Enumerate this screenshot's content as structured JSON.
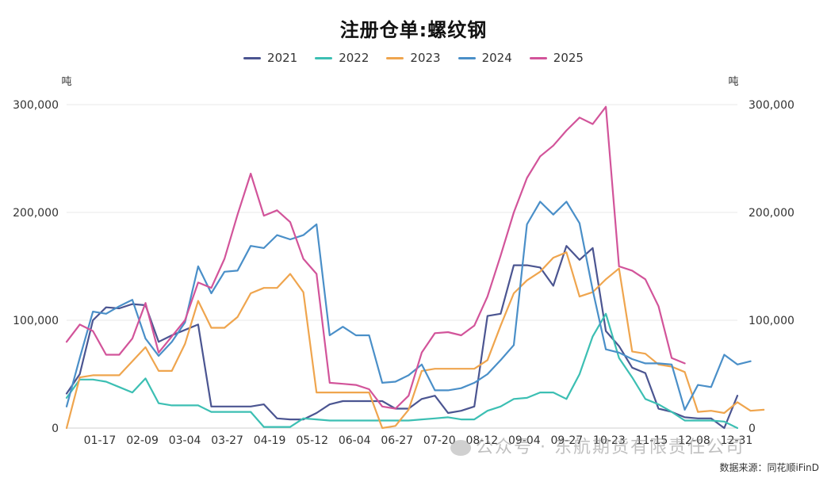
{
  "chart_data": {
    "type": "line",
    "title": "注册仓单:螺纹钢",
    "y_unit_left": "吨",
    "y_unit_right": "吨",
    "ylim": [
      0,
      300000
    ],
    "y_ticks": [
      "0",
      "100,000",
      "200,000",
      "300,000"
    ],
    "x_tick_labels": [
      "01-17",
      "02-09",
      "03-04",
      "03-27",
      "04-19",
      "05-12",
      "06-04",
      "06-27",
      "07-20",
      "08-12",
      "09-04",
      "09-27",
      "10-23",
      "11-15",
      "12-08",
      "12-31"
    ],
    "grid": true,
    "legend_position": "top-center",
    "series": [
      {
        "name": "2021",
        "color": "#4b5591",
        "values": [
          32000,
          50000,
          100000,
          112000,
          111000,
          115000,
          114000,
          80000,
          86000,
          91000,
          96000,
          20000,
          20000,
          20000,
          20000,
          22000,
          9000,
          8000,
          8000,
          14000,
          22000,
          25000,
          25000,
          25000,
          25000,
          18000,
          18000,
          27000,
          30000,
          14000,
          16000,
          20000,
          104000,
          106000,
          151000,
          151000,
          149000,
          132000,
          169000,
          156000,
          167000,
          90000,
          76000,
          56000,
          51000,
          18000,
          15000,
          10000,
          9000,
          9000,
          0,
          30000
        ]
      },
      {
        "name": "2022",
        "color": "#3cbfb3",
        "values": [
          28000,
          45000,
          45000,
          43000,
          38000,
          33000,
          46000,
          23000,
          21000,
          21000,
          21000,
          15000,
          15000,
          15000,
          15000,
          1000,
          1000,
          1000,
          9000,
          8000,
          7000,
          7000,
          7000,
          7000,
          7000,
          7000,
          7000,
          8000,
          9000,
          10000,
          8000,
          8000,
          16000,
          20000,
          27000,
          28000,
          33000,
          33000,
          27000,
          50000,
          85000,
          106000,
          65000,
          47000,
          27000,
          22000,
          15000,
          7000,
          7000,
          7000,
          6000,
          0
        ]
      },
      {
        "name": "2023",
        "color": "#efa54e",
        "values": [
          0,
          47000,
          49000,
          49000,
          49000,
          62000,
          75000,
          53000,
          53000,
          78000,
          118000,
          93000,
          93000,
          103000,
          125000,
          130000,
          130000,
          143000,
          126000,
          33000,
          33000,
          33000,
          33000,
          33000,
          0,
          2000,
          17000,
          53000,
          55000,
          55000,
          55000,
          55000,
          63000,
          95000,
          125000,
          137000,
          145000,
          158000,
          163000,
          122000,
          126000,
          138000,
          148000,
          71000,
          69000,
          59000,
          57000,
          52000,
          15000,
          16000,
          14000,
          24000,
          16000,
          17000
        ]
      },
      {
        "name": "2024",
        "color": "#4a8fc8",
        "values": [
          20000,
          65000,
          108000,
          106000,
          113000,
          119000,
          83000,
          67000,
          80000,
          98000,
          150000,
          125000,
          145000,
          146000,
          169000,
          167000,
          179000,
          175000,
          179000,
          189000,
          86000,
          94000,
          86000,
          86000,
          42000,
          43000,
          49000,
          59000,
          35000,
          35000,
          37000,
          42000,
          50000,
          63000,
          77000,
          189000,
          210000,
          198000,
          210000,
          190000,
          128000,
          73000,
          70000,
          64000,
          60000,
          60000,
          59000,
          17000,
          40000,
          38000,
          68000,
          59000,
          62000
        ]
      },
      {
        "name": "2025",
        "color": "#d2549a",
        "values": [
          80000,
          96000,
          90000,
          68000,
          68000,
          83000,
          116000,
          70000,
          85000,
          100000,
          135000,
          130000,
          157000,
          198000,
          236000,
          197000,
          202000,
          191000,
          157000,
          143000,
          42000,
          41000,
          40000,
          36000,
          20000,
          18000,
          30000,
          70000,
          88000,
          89000,
          86000,
          95000,
          122000,
          160000,
          200000,
          232000,
          252000,
          262000,
          276000,
          288000,
          282000,
          298000,
          150000,
          146000,
          138000,
          113000,
          65000,
          60000
        ]
      }
    ]
  },
  "footer": {
    "source": "数据来源：同花顺iFinD",
    "watermark": "公众号 · 东航期货有限责任公司"
  }
}
